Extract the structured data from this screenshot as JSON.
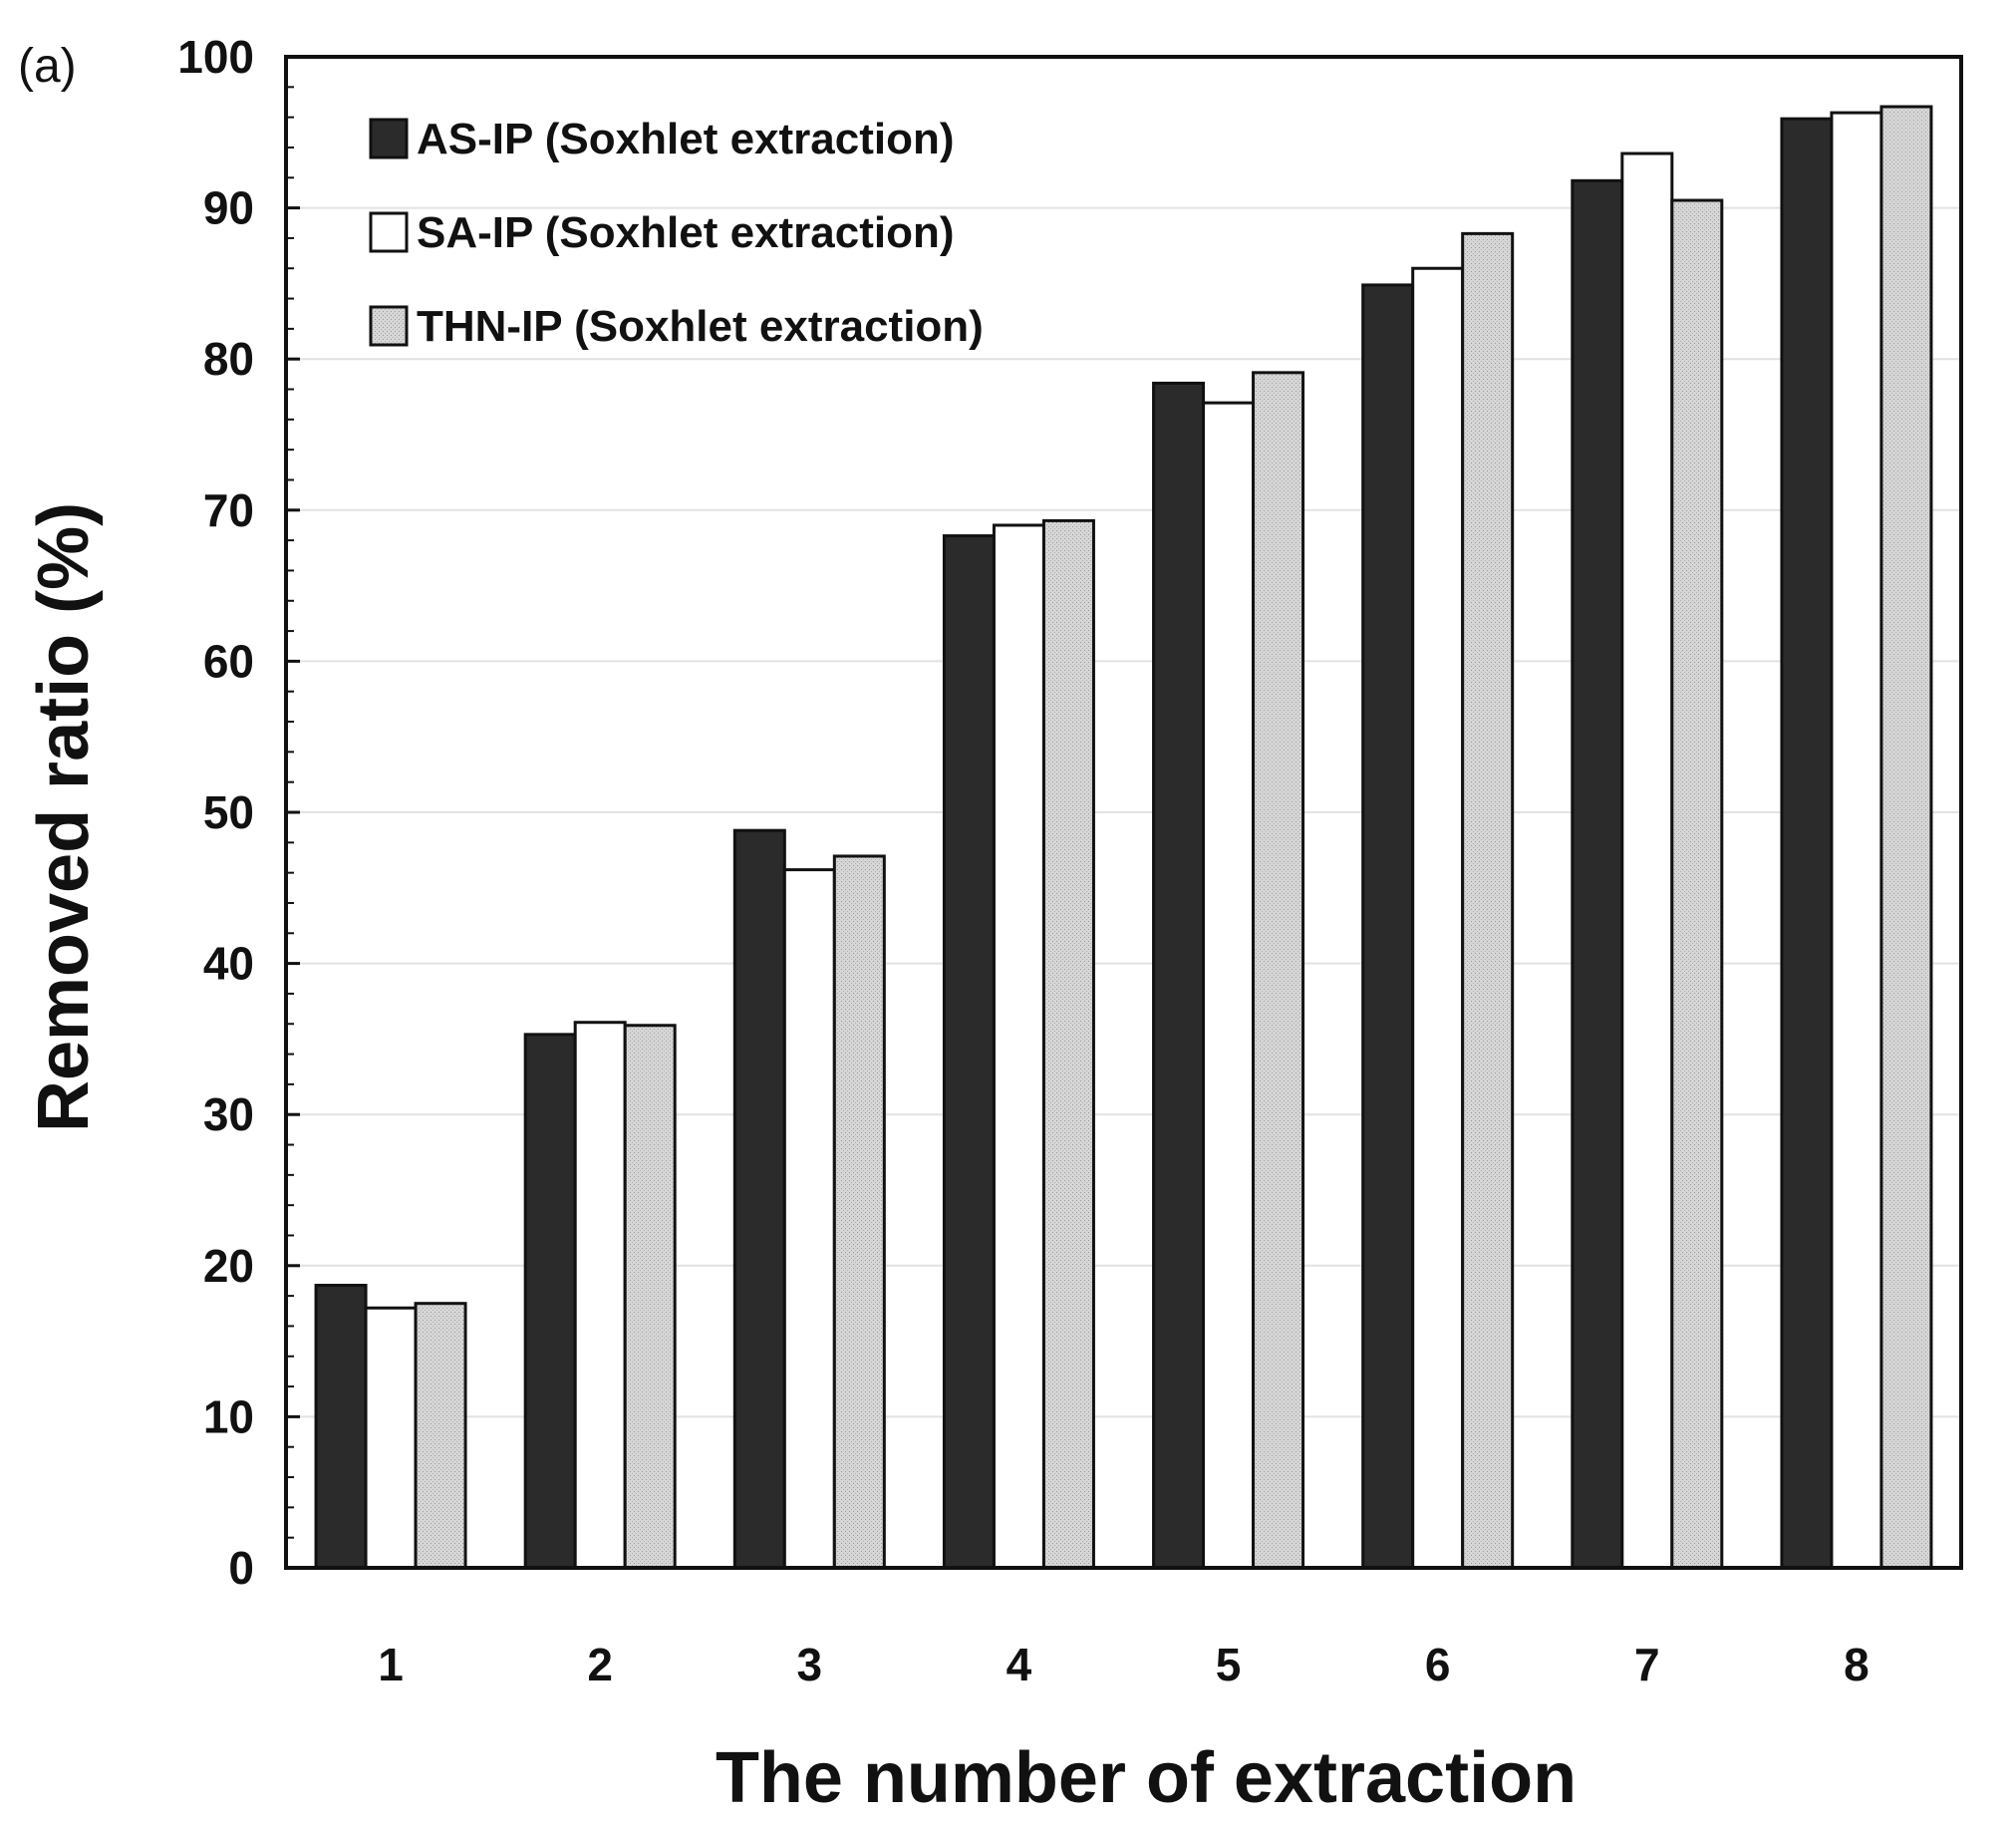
{
  "panel_label": "(a)",
  "chart_data": {
    "type": "bar",
    "title": "",
    "xlabel": "The number of extraction",
    "ylabel": "Removed ratio (%)",
    "ylim": [
      0,
      100
    ],
    "yticks": [
      "0",
      "10",
      "20",
      "30",
      "40",
      "50",
      "60",
      "70",
      "80",
      "90",
      "100"
    ],
    "grid": true,
    "legend_position": "top-left",
    "categories": [
      "1",
      "2",
      "3",
      "4",
      "5",
      "6",
      "7",
      "8"
    ],
    "series": [
      {
        "name": "AS-IP (Soxhlet extraction)",
        "fill": "#2b2b2b",
        "values": [
          18.7,
          35.3,
          48.8,
          68.3,
          78.4,
          84.9,
          91.8,
          95.9
        ]
      },
      {
        "name": "SA-IP (Soxhlet extraction)",
        "fill": "#ffffff",
        "values": [
          17.2,
          36.1,
          46.2,
          69.0,
          77.1,
          86.0,
          93.6,
          96.3
        ]
      },
      {
        "name": "THN-IP (Soxhlet extraction)",
        "fill": "#d4d4d4",
        "values": [
          17.5,
          35.9,
          47.1,
          69.3,
          79.1,
          88.3,
          90.5,
          96.7
        ]
      }
    ]
  }
}
